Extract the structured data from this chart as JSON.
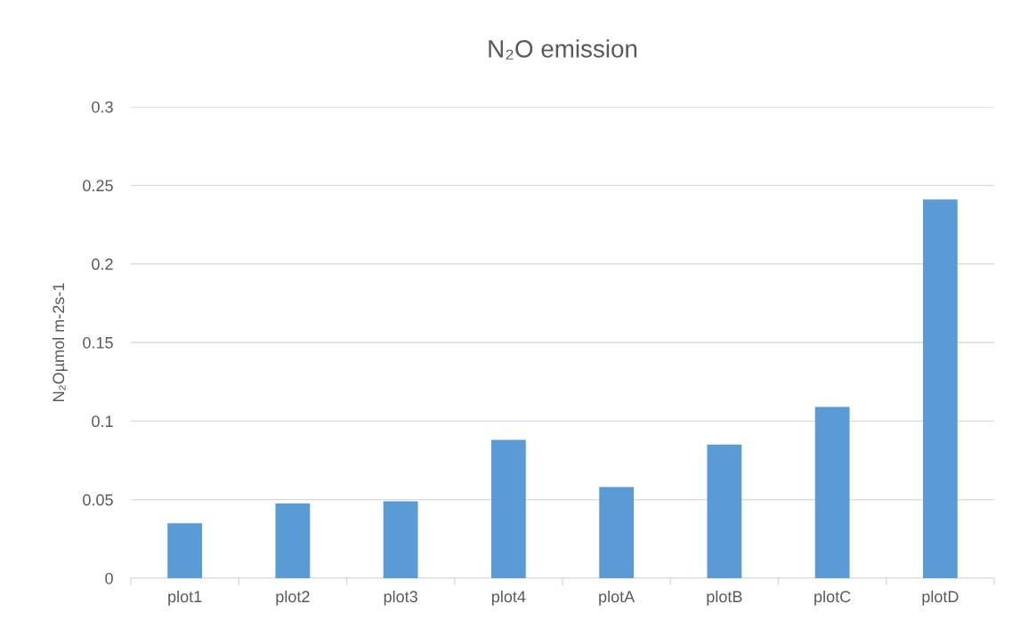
{
  "chart_data": {
    "type": "bar",
    "title": "N₂O emission",
    "ylabel": "N₂Oµmol m-2s-1",
    "categories": [
      "plot1",
      "plot2",
      "plot3",
      "plot4",
      "plotA",
      "plotB",
      "plotC",
      "plotD"
    ],
    "values": [
      0.035,
      0.0475,
      0.049,
      0.088,
      0.058,
      0.085,
      0.109,
      0.241
    ],
    "color": "#5b9bd5",
    "ylim": [
      0,
      0.3
    ],
    "yticks": [
      0,
      0.05,
      0.1,
      0.15,
      0.2,
      0.25,
      0.3
    ],
    "grid": "y",
    "legend": false
  }
}
